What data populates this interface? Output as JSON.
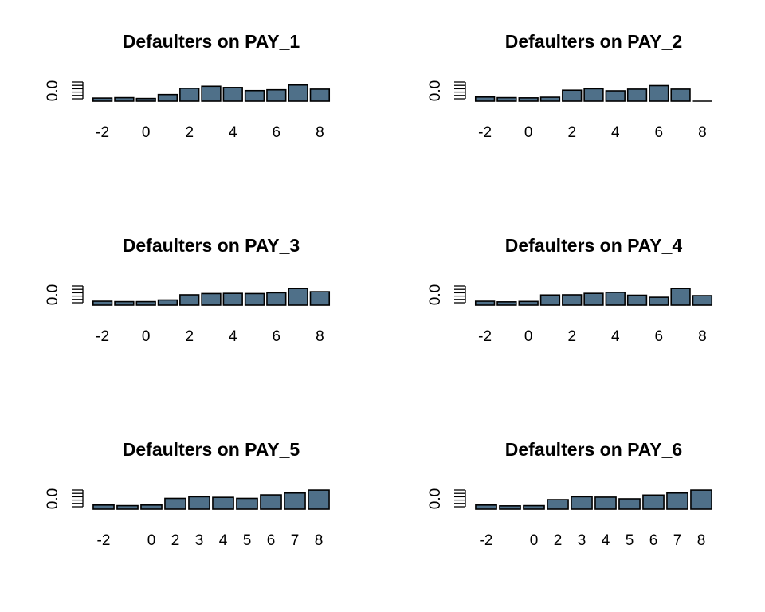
{
  "chart_data": [
    {
      "type": "bar",
      "title": "Defaulters on PAY_1",
      "categories": [
        "-2",
        "-1",
        "0",
        "1",
        "2",
        "3",
        "4",
        "5",
        "6",
        "7",
        "8"
      ],
      "values": [
        0.15,
        0.17,
        0.13,
        0.32,
        0.62,
        0.72,
        0.66,
        0.51,
        0.55,
        0.78,
        0.58
      ],
      "xticks": [
        "-2",
        "0",
        "2",
        "4",
        "6",
        "8"
      ],
      "xtick_positions": [
        -2,
        0,
        2,
        4,
        6,
        8
      ],
      "x_range": [
        -2,
        8
      ],
      "ylabel": "0.0",
      "ylim": [
        0,
        1
      ],
      "grid": false
    },
    {
      "type": "bar",
      "title": "Defaulters on PAY_2",
      "categories": [
        "-2",
        "-1",
        "0",
        "1",
        "2",
        "3",
        "4",
        "5",
        "6",
        "7",
        "8"
      ],
      "values": [
        0.2,
        0.17,
        0.16,
        0.19,
        0.53,
        0.6,
        0.5,
        0.58,
        0.75,
        0.58,
        0.0
      ],
      "xticks": [
        "-2",
        "0",
        "2",
        "4",
        "6",
        "8"
      ],
      "xtick_positions": [
        -2,
        0,
        2,
        4,
        6,
        8
      ],
      "x_range": [
        -2,
        8
      ],
      "ylabel": "0.0",
      "ylim": [
        0,
        1
      ],
      "grid": false
    },
    {
      "type": "bar",
      "title": "Defaulters on PAY_3",
      "categories": [
        "-2",
        "-1",
        "0",
        "1",
        "2",
        "3",
        "4",
        "5",
        "6",
        "7",
        "8"
      ],
      "values": [
        0.19,
        0.17,
        0.17,
        0.25,
        0.5,
        0.56,
        0.57,
        0.56,
        0.6,
        0.8,
        0.65
      ],
      "xticks": [
        "-2",
        "0",
        "2",
        "4",
        "6",
        "8"
      ],
      "xtick_positions": [
        -2,
        0,
        2,
        4,
        6,
        8
      ],
      "x_range": [
        -2,
        8
      ],
      "ylabel": "0.0",
      "ylim": [
        0,
        1
      ],
      "grid": false
    },
    {
      "type": "bar",
      "title": "Defaulters on PAY_4",
      "categories": [
        "-2",
        "-1",
        "0",
        "1",
        "2",
        "3",
        "4",
        "5",
        "6",
        "7",
        "8"
      ],
      "values": [
        0.19,
        0.16,
        0.18,
        0.49,
        0.5,
        0.57,
        0.62,
        0.48,
        0.38,
        0.8,
        0.46
      ],
      "xticks": [
        "-2",
        "0",
        "2",
        "4",
        "6",
        "8"
      ],
      "xtick_positions": [
        -2,
        0,
        2,
        4,
        6,
        8
      ],
      "x_range": [
        -2,
        8
      ],
      "ylabel": "0.0",
      "ylim": [
        0,
        1
      ],
      "grid": false
    },
    {
      "type": "bar",
      "title": "Defaulters on PAY_5",
      "categories": [
        "-2",
        "-1",
        "0",
        "2",
        "3",
        "4",
        "5",
        "6",
        "7",
        "8"
      ],
      "values": [
        0.2,
        0.17,
        0.2,
        0.52,
        0.6,
        0.57,
        0.52,
        0.69,
        0.78,
        0.92
      ],
      "xticks": [
        "-2",
        "0",
        "2",
        "3",
        "4",
        "5",
        "6",
        "7",
        "8"
      ],
      "xtick_positions": [
        0,
        2,
        3,
        4,
        5,
        6,
        7,
        8,
        9
      ],
      "x_range": [
        0,
        9
      ],
      "ylabel": "0.0",
      "ylim": [
        0,
        1
      ],
      "grid": false
    },
    {
      "type": "bar",
      "title": "Defaulters on PAY_6",
      "categories": [
        "-2",
        "-1",
        "0",
        "2",
        "3",
        "4",
        "5",
        "6",
        "7",
        "8"
      ],
      "values": [
        0.2,
        0.16,
        0.17,
        0.46,
        0.6,
        0.58,
        0.5,
        0.68,
        0.78,
        0.92
      ],
      "xticks": [
        "-2",
        "0",
        "2",
        "3",
        "4",
        "5",
        "6",
        "7",
        "8"
      ],
      "xtick_positions": [
        0,
        2,
        3,
        4,
        5,
        6,
        7,
        8,
        9
      ],
      "x_range": [
        0,
        9
      ],
      "ylabel": "0.0",
      "ylim": [
        0,
        1
      ],
      "grid": false
    }
  ],
  "colors": {
    "bar_fill": "#4f7089",
    "bar_stroke": "#000000",
    "background": "#ffffff"
  }
}
